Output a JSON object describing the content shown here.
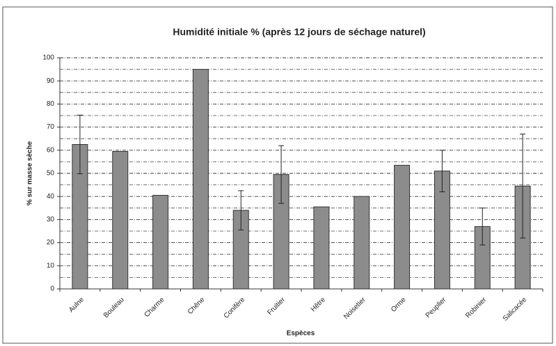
{
  "chart_data": {
    "type": "bar",
    "title": "Humidité initiale % (après 12 jours de séchage naturel)",
    "x_label": "Espèces",
    "y_label": "% sur masse sèche",
    "categories": [
      "Aulne",
      "Bouleau",
      "Charme",
      "Chêne",
      "Conifère",
      "Fruitier",
      "Hêtre",
      "Noisetier",
      "Orme",
      "Peuplier",
      "Robinier",
      "Salicacée"
    ],
    "values": [
      62.5,
      59.5,
      40.5,
      95,
      34,
      49.5,
      35.5,
      40,
      53.5,
      51,
      27,
      44.5
    ],
    "errors": [
      12.7,
      null,
      null,
      null,
      8.5,
      12.5,
      null,
      null,
      null,
      9,
      8,
      22.5
    ],
    "color": "#8c8c8c",
    "ylim": [
      0,
      100
    ],
    "yticks": [
      0,
      10,
      20,
      30,
      40,
      50,
      60,
      70,
      80,
      90,
      100
    ],
    "minor_yticks": [
      5,
      15,
      25,
      35,
      45,
      55,
      65,
      75,
      85,
      95
    ],
    "grid": true
  }
}
